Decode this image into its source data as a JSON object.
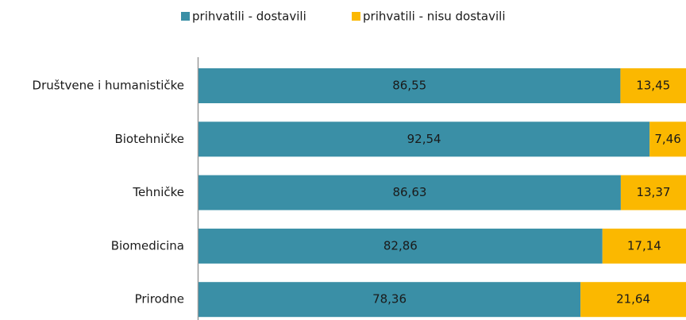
{
  "chart_data": {
    "type": "stacked_bar_horizontal",
    "categories": [
      "Društvene i humanističke",
      "Biotehničke",
      "Tehničke",
      "Biomedicina",
      "Prirodne"
    ],
    "series": [
      {
        "name": "prihvatili - dostavili",
        "color": "#3a8fa6",
        "values": [
          86.55,
          92.54,
          86.63,
          82.86,
          78.36
        ],
        "value_labels": [
          "86,55",
          "92,54",
          "86,63",
          "82,86",
          "78,36"
        ]
      },
      {
        "name": "prihvatili - nisu dostavili",
        "color": "#fbb800",
        "values": [
          13.45,
          7.46,
          13.37,
          17.14,
          21.64
        ],
        "value_labels": [
          "13,45",
          "7,46",
          "13,37",
          "17,14",
          "21,64"
        ]
      }
    ],
    "xlim": [
      0,
      100
    ],
    "legend": "top"
  }
}
